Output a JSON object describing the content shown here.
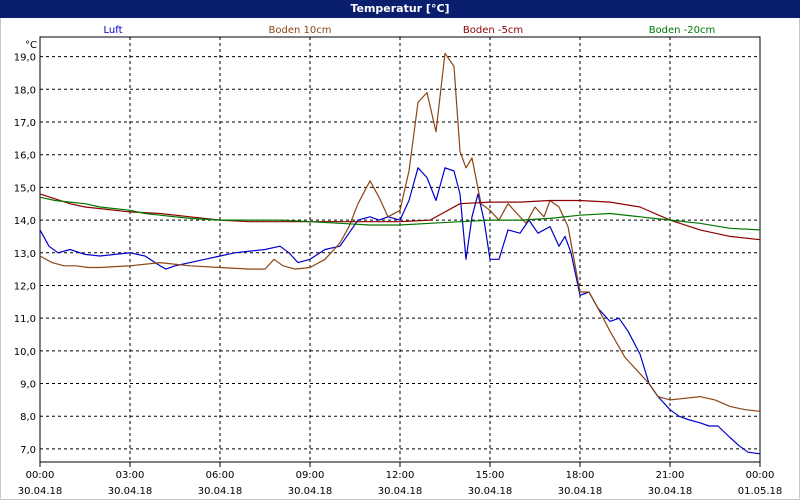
{
  "window": {
    "title": "Temperatur [°C]"
  },
  "chart_data": {
    "type": "line",
    "title": "Temperatur [°C]",
    "ylabel": "°C",
    "ylim": [
      6.6,
      19.6
    ],
    "xlim": [
      0,
      24
    ],
    "grid": true,
    "legend_position": "top",
    "y_ticks": [
      "7,0",
      "8,0",
      "9,0",
      "10,0",
      "11,0",
      "12,0",
      "13,0",
      "14,0",
      "15,0",
      "16,0",
      "17,0",
      "18,0",
      "19,0"
    ],
    "y_tick_values": [
      7,
      8,
      9,
      10,
      11,
      12,
      13,
      14,
      15,
      16,
      17,
      18,
      19
    ],
    "x_tick_values": [
      0,
      3,
      6,
      9,
      12,
      15,
      18,
      21,
      24
    ],
    "x_ticks": [
      {
        "time": "00:00",
        "date": "30.04.18"
      },
      {
        "time": "03:00",
        "date": "30.04.18"
      },
      {
        "time": "06:00",
        "date": "30.04.18"
      },
      {
        "time": "09:00",
        "date": "30.04.18"
      },
      {
        "time": "12:00",
        "date": "30.04.18"
      },
      {
        "time": "15:00",
        "date": "30.04.18"
      },
      {
        "time": "18:00",
        "date": "30.04.18"
      },
      {
        "time": "21:00",
        "date": "30.04.18"
      },
      {
        "time": "00:00",
        "date": "01.05.18"
      }
    ],
    "series": [
      {
        "name": "Luft",
        "color": "#0000cc",
        "x": [
          0,
          0.3,
          0.6,
          1,
          1.5,
          2,
          2.5,
          3,
          3.5,
          4,
          4.2,
          4.5,
          5,
          5.5,
          6,
          6.5,
          7,
          7.5,
          8,
          8.3,
          8.6,
          9,
          9.5,
          10,
          10.3,
          10.6,
          11,
          11.3,
          11.6,
          12,
          12.3,
          12.6,
          12.9,
          13.2,
          13.5,
          13.8,
          14,
          14.2,
          14.4,
          14.6,
          14.8,
          15,
          15.3,
          15.6,
          16,
          16.3,
          16.6,
          17,
          17.3,
          17.5,
          17.7,
          18,
          18.3,
          18.6,
          19,
          19.3,
          19.6,
          20,
          20.3,
          20.6,
          21,
          21.3,
          21.6,
          22,
          22.3,
          22.6,
          23,
          23.3,
          23.6,
          24
        ],
        "values": [
          13.7,
          13.2,
          13.0,
          13.1,
          12.95,
          12.9,
          12.95,
          13.0,
          12.9,
          12.6,
          12.5,
          12.6,
          12.7,
          12.8,
          12.9,
          13.0,
          13.05,
          13.1,
          13.2,
          13.0,
          12.7,
          12.8,
          13.1,
          13.2,
          13.6,
          14.0,
          14.1,
          14.0,
          14.1,
          14.0,
          14.6,
          15.6,
          15.3,
          14.6,
          15.6,
          15.5,
          14.8,
          12.8,
          14.1,
          14.8,
          14.0,
          12.8,
          12.8,
          13.7,
          13.6,
          14.0,
          13.6,
          13.8,
          13.2,
          13.5,
          13.0,
          11.7,
          11.8,
          11.3,
          10.9,
          11.0,
          10.6,
          9.9,
          9.0,
          8.6,
          8.2,
          8.0,
          7.9,
          7.8,
          7.7,
          7.7,
          7.35,
          7.1,
          6.9,
          6.85
        ]
      },
      {
        "name": "Boden 10cm",
        "color": "#8b4513",
        "x": [
          0,
          0.4,
          0.8,
          1.2,
          1.6,
          2,
          3,
          4,
          5,
          6,
          7,
          7.5,
          7.8,
          8.1,
          8.5,
          9,
          9.5,
          10,
          10.3,
          10.6,
          11,
          11.3,
          11.6,
          12,
          12.3,
          12.6,
          12.9,
          13.2,
          13.5,
          13.8,
          14,
          14.2,
          14.4,
          14.7,
          15,
          15.3,
          15.6,
          15.9,
          16.2,
          16.5,
          16.8,
          17,
          17.3,
          17.6,
          18,
          18.3,
          18.6,
          19,
          19.5,
          20,
          20.3,
          20.6,
          21,
          21.5,
          22,
          22.5,
          23,
          23.5,
          24
        ],
        "values": [
          12.9,
          12.7,
          12.6,
          12.6,
          12.55,
          12.55,
          12.6,
          12.7,
          12.6,
          12.55,
          12.5,
          12.5,
          12.8,
          12.6,
          12.5,
          12.55,
          12.8,
          13.3,
          13.8,
          14.5,
          15.2,
          14.7,
          14.1,
          14.3,
          15.5,
          17.6,
          17.9,
          16.7,
          19.1,
          18.7,
          16.1,
          15.6,
          15.9,
          14.5,
          14.3,
          14.0,
          14.5,
          14.2,
          13.9,
          14.4,
          14.1,
          14.6,
          14.4,
          13.8,
          11.8,
          11.8,
          11.3,
          10.6,
          9.8,
          9.3,
          9.0,
          8.6,
          8.5,
          8.55,
          8.6,
          8.5,
          8.3,
          8.2,
          8.15
        ]
      },
      {
        "name": "Boden -5cm",
        "color": "#8b0000",
        "x": [
          0,
          0.5,
          1,
          1.5,
          2,
          3,
          4,
          5,
          6,
          7,
          8,
          9,
          10,
          11,
          12,
          13,
          14,
          15,
          16,
          17,
          18,
          19,
          20,
          21,
          22,
          23,
          24
        ],
        "values": [
          14.8,
          14.65,
          14.5,
          14.4,
          14.35,
          14.25,
          14.2,
          14.1,
          14.0,
          13.95,
          13.95,
          13.95,
          13.95,
          13.95,
          13.95,
          14.0,
          14.5,
          14.55,
          14.55,
          14.6,
          14.6,
          14.55,
          14.4,
          14.0,
          13.7,
          13.5,
          13.4
        ]
      },
      {
        "name": "Boden -20cm",
        "color": "#007700",
        "x": [
          0,
          0.5,
          1,
          1.5,
          2,
          3,
          3.5,
          4,
          5,
          6,
          7,
          8,
          9,
          10,
          11,
          12,
          13,
          14,
          15,
          16,
          17,
          18,
          19,
          20,
          21,
          22,
          23,
          24
        ],
        "values": [
          14.7,
          14.6,
          14.55,
          14.5,
          14.4,
          14.3,
          14.2,
          14.15,
          14.05,
          14.0,
          14.0,
          14.0,
          13.95,
          13.9,
          13.85,
          13.85,
          13.9,
          13.95,
          14.0,
          14.0,
          14.05,
          14.15,
          14.2,
          14.1,
          14.0,
          13.9,
          13.75,
          13.7
        ]
      }
    ]
  }
}
